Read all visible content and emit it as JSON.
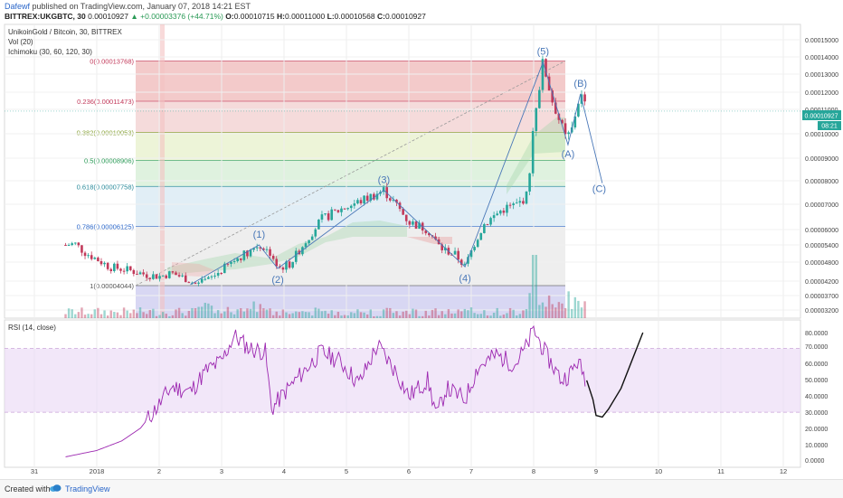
{
  "header": {
    "author": "Dafewf",
    "published": "published on TradingView.com, January 07, 2018 14:21 EST",
    "symbol": "BITTREX:UKGBTC, 30",
    "close_label": "0.00010927",
    "change": "▲ +0.00003376 (+44.71%)",
    "o_label": "O:",
    "o_value": "0.00010715",
    "h_label": "H:",
    "h_value": "0.00011000",
    "l_label": "L:",
    "l_value": "0.00010568",
    "c_label": "C:",
    "c_value": "0.00010927"
  },
  "legend": {
    "pair": "UnikoinGold / Bitcoin, 30, BITTREX",
    "vol": "Vol (20)",
    "ichimoku": "Ichimoku (30, 60, 120, 30)",
    "rsi": "RSI (14, close)"
  },
  "price_badge": {
    "value": "0.00010927",
    "countdown": "08:21"
  },
  "footer": {
    "created": "Created with",
    "brand": "TradingView"
  },
  "colors": {
    "up": "#26a69a",
    "down": "#c2395a",
    "rsi": "#9c27b0",
    "fib_0": "#e58a8a",
    "fib_236": "#e8b0b0",
    "fib_382": "#d7e6a8",
    "fib_5": "#b9e2b9",
    "fib_618": "#bcd9ec",
    "fib_786": "#d9d9d9",
    "fib_1": "#c8c6ee",
    "wave": "#4a78b8"
  },
  "chart_data": [
    {
      "type": "candlestick",
      "title": "UnikoinGold / Bitcoin, 30, BITTREX",
      "x_ticks": [
        "31",
        "2018",
        "2",
        "3",
        "4",
        "5",
        "6",
        "7",
        "8",
        "9",
        "10",
        "11",
        "12"
      ],
      "y_ticks": [
        "0.00015000",
        "0.00014000",
        "0.00013000",
        "0.00012000",
        "0.00011000",
        "0.00010000",
        "0.00009000",
        "0.00008000",
        "0.00007000",
        "0.00006000",
        "0.00005400",
        "0.00004800",
        "0.00004200",
        "0.00003700",
        "0.00003200"
      ],
      "ylim": [
        3.2e-05,
        0.00015
      ],
      "xlim": [
        -0.6,
        12.4
      ],
      "price_path": [
        [
          -0.5,
          5.4e-05
        ],
        [
          -0.35,
          5.45e-05
        ],
        [
          -0.2,
          5.15e-05
        ],
        [
          0.0,
          4.9e-05
        ],
        [
          0.2,
          4.65e-05
        ],
        [
          0.5,
          4.55e-05
        ],
        [
          0.8,
          4.4e-05
        ],
        [
          1.0,
          4.35e-05
        ],
        [
          1.2,
          4.45e-05
        ],
        [
          1.4,
          4.3e-05
        ],
        [
          1.6,
          4.08e-05
        ],
        [
          1.8,
          4.25e-05
        ],
        [
          2.0,
          4.55e-05
        ],
        [
          2.3,
          5e-05
        ],
        [
          2.6,
          5.4e-05
        ],
        [
          2.8,
          5.1e-05
        ],
        [
          2.9,
          4.6e-05
        ],
        [
          3.1,
          4.75e-05
        ],
        [
          3.3,
          5.4e-05
        ],
        [
          3.6,
          6.4e-05
        ],
        [
          3.9,
          6.8e-05
        ],
        [
          4.2,
          7.1e-05
        ],
        [
          4.6,
          7.6e-05
        ],
        [
          4.85,
          6.8e-05
        ],
        [
          5.0,
          6.3e-05
        ],
        [
          5.3,
          6e-05
        ],
        [
          5.5,
          5.3e-05
        ],
        [
          5.75,
          5.05e-05
        ],
        [
          5.9,
          4.65e-05
        ],
        [
          6.05,
          5.45e-05
        ],
        [
          6.2,
          6.2e-05
        ],
        [
          6.5,
          6.8e-05
        ],
        [
          6.75,
          7e-05
        ],
        [
          6.9,
          7.4e-05
        ],
        [
          7.0,
          0.000105
        ],
        [
          7.1,
          0.000125
        ],
        [
          7.15,
          0.000137
        ],
        [
          7.3,
          0.000115
        ],
        [
          7.5,
          9.8e-05
        ],
        [
          7.6,
          0.0001
        ],
        [
          7.75,
          0.000119
        ],
        [
          7.85,
          0.0001093
        ]
      ],
      "fib_levels": [
        {
          "label": "0(0.00013768)",
          "value": 0.00013768
        },
        {
          "label": "0.236(0.00011473)",
          "value": 0.00011473
        },
        {
          "label": "0.382(0.00010053)",
          "value": 0.00010053
        },
        {
          "label": "0.5(0.00008906)",
          "value": 8.906e-05
        },
        {
          "label": "0.618(0.00007758)",
          "value": 7.758e-05
        },
        {
          "label": "0.786(0.00006125)",
          "value": 6.125e-05
        },
        {
          "label": "1(0.00004044)",
          "value": 4.044e-05
        }
      ],
      "wave_labels": [
        {
          "text": "(1)",
          "x": 2.6,
          "y": 5.4e-05
        },
        {
          "text": "(2)",
          "x": 2.9,
          "y": 4.6e-05
        },
        {
          "text": "(3)",
          "x": 4.6,
          "y": 7.6e-05
        },
        {
          "text": "(4)",
          "x": 5.9,
          "y": 4.65e-05
        },
        {
          "text": "(5)",
          "x": 7.15,
          "y": 0.000137
        },
        {
          "text": "(A)",
          "x": 7.55,
          "y": 9.55e-05
        },
        {
          "text": "(B)",
          "x": 7.75,
          "y": 0.000119
        },
        {
          "text": "(C)",
          "x": 8.05,
          "y": 7.9e-05
        }
      ],
      "current_price": 0.00010927
    },
    {
      "type": "line",
      "title": "RSI (14, close)",
      "y_ticks": [
        "80.0000",
        "70.0000",
        "60.0000",
        "50.0000",
        "40.0000",
        "30.0000",
        "20.0000",
        "10.0000",
        "0.0000"
      ],
      "ylim": [
        0,
        85
      ],
      "bands": [
        30,
        70
      ],
      "rsi_path": [
        [
          -0.5,
          2
        ],
        [
          0.0,
          6
        ],
        [
          0.4,
          12
        ],
        [
          0.7,
          20
        ],
        [
          1.0,
          35
        ],
        [
          1.2,
          46
        ],
        [
          1.5,
          43
        ],
        [
          1.75,
          56
        ],
        [
          2.0,
          62
        ],
        [
          2.2,
          78
        ],
        [
          2.45,
          70
        ],
        [
          2.7,
          68
        ],
        [
          2.8,
          32
        ],
        [
          3.0,
          42
        ],
        [
          3.3,
          55
        ],
        [
          3.6,
          68
        ],
        [
          3.9,
          62
        ],
        [
          4.2,
          48
        ],
        [
          4.5,
          72
        ],
        [
          4.8,
          55
        ],
        [
          5.0,
          40
        ],
        [
          5.3,
          50
        ],
        [
          5.45,
          28
        ],
        [
          5.6,
          45
        ],
        [
          5.9,
          38
        ],
        [
          6.1,
          58
        ],
        [
          6.4,
          66
        ],
        [
          6.7,
          60
        ],
        [
          6.9,
          72
        ],
        [
          7.0,
          82
        ],
        [
          7.2,
          66
        ],
        [
          7.45,
          50
        ],
        [
          7.6,
          55
        ],
        [
          7.7,
          62
        ],
        [
          7.85,
          50
        ]
      ],
      "forecast_path": [
        [
          7.85,
          50
        ],
        [
          7.95,
          38
        ],
        [
          8.0,
          28
        ],
        [
          8.1,
          27
        ],
        [
          8.2,
          32
        ],
        [
          8.4,
          45
        ],
        [
          8.6,
          65
        ],
        [
          8.75,
          80
        ]
      ]
    }
  ]
}
